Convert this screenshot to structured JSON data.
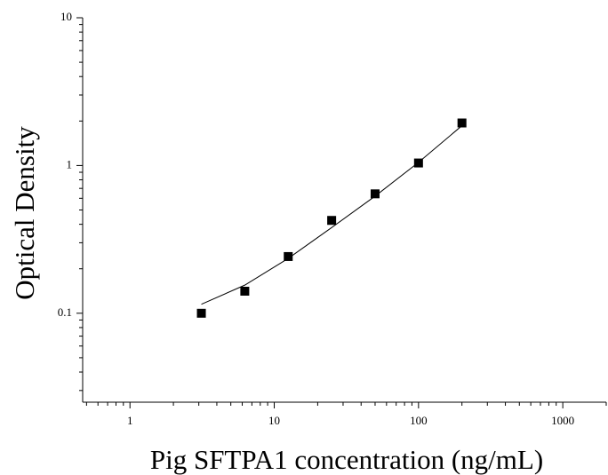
{
  "chart_data": {
    "type": "scatter",
    "x_label": "Pig SFTPA1 concentration (ng/mL)",
    "y_label": "Optical Density",
    "x_scale": "log",
    "y_scale": "log",
    "xlim": [
      0.47,
      2000
    ],
    "ylim": [
      0.025,
      10
    ],
    "xticks": [
      1,
      10,
      100,
      1000
    ],
    "yticks": [
      0.1,
      1,
      10
    ],
    "x_minor_ticks": [
      0.5,
      0.6,
      0.7,
      0.8,
      0.9,
      2,
      3,
      4,
      5,
      6,
      7,
      8,
      9,
      20,
      30,
      40,
      50,
      60,
      70,
      80,
      90,
      200,
      300,
      400,
      500,
      600,
      700,
      800,
      900,
      2000
    ],
    "y_minor_ticks": [
      0.03,
      0.04,
      0.05,
      0.06,
      0.07,
      0.08,
      0.09,
      0.2,
      0.3,
      0.4,
      0.5,
      0.6,
      0.7,
      0.8,
      0.9,
      2,
      3,
      4,
      5,
      6,
      7,
      8,
      9
    ],
    "color": "#000000",
    "x": [
      3.125,
      6.25,
      12.5,
      25,
      50,
      100,
      200
    ],
    "values": [
      0.1,
      0.141,
      0.242,
      0.425,
      0.643,
      1.04,
      1.94
    ],
    "fit": {
      "x": [
        3.125,
        6.25,
        12.5,
        25,
        50,
        100,
        200
      ],
      "values": [
        0.115,
        0.155,
        0.235,
        0.38,
        0.62,
        1.05,
        1.86
      ]
    }
  }
}
